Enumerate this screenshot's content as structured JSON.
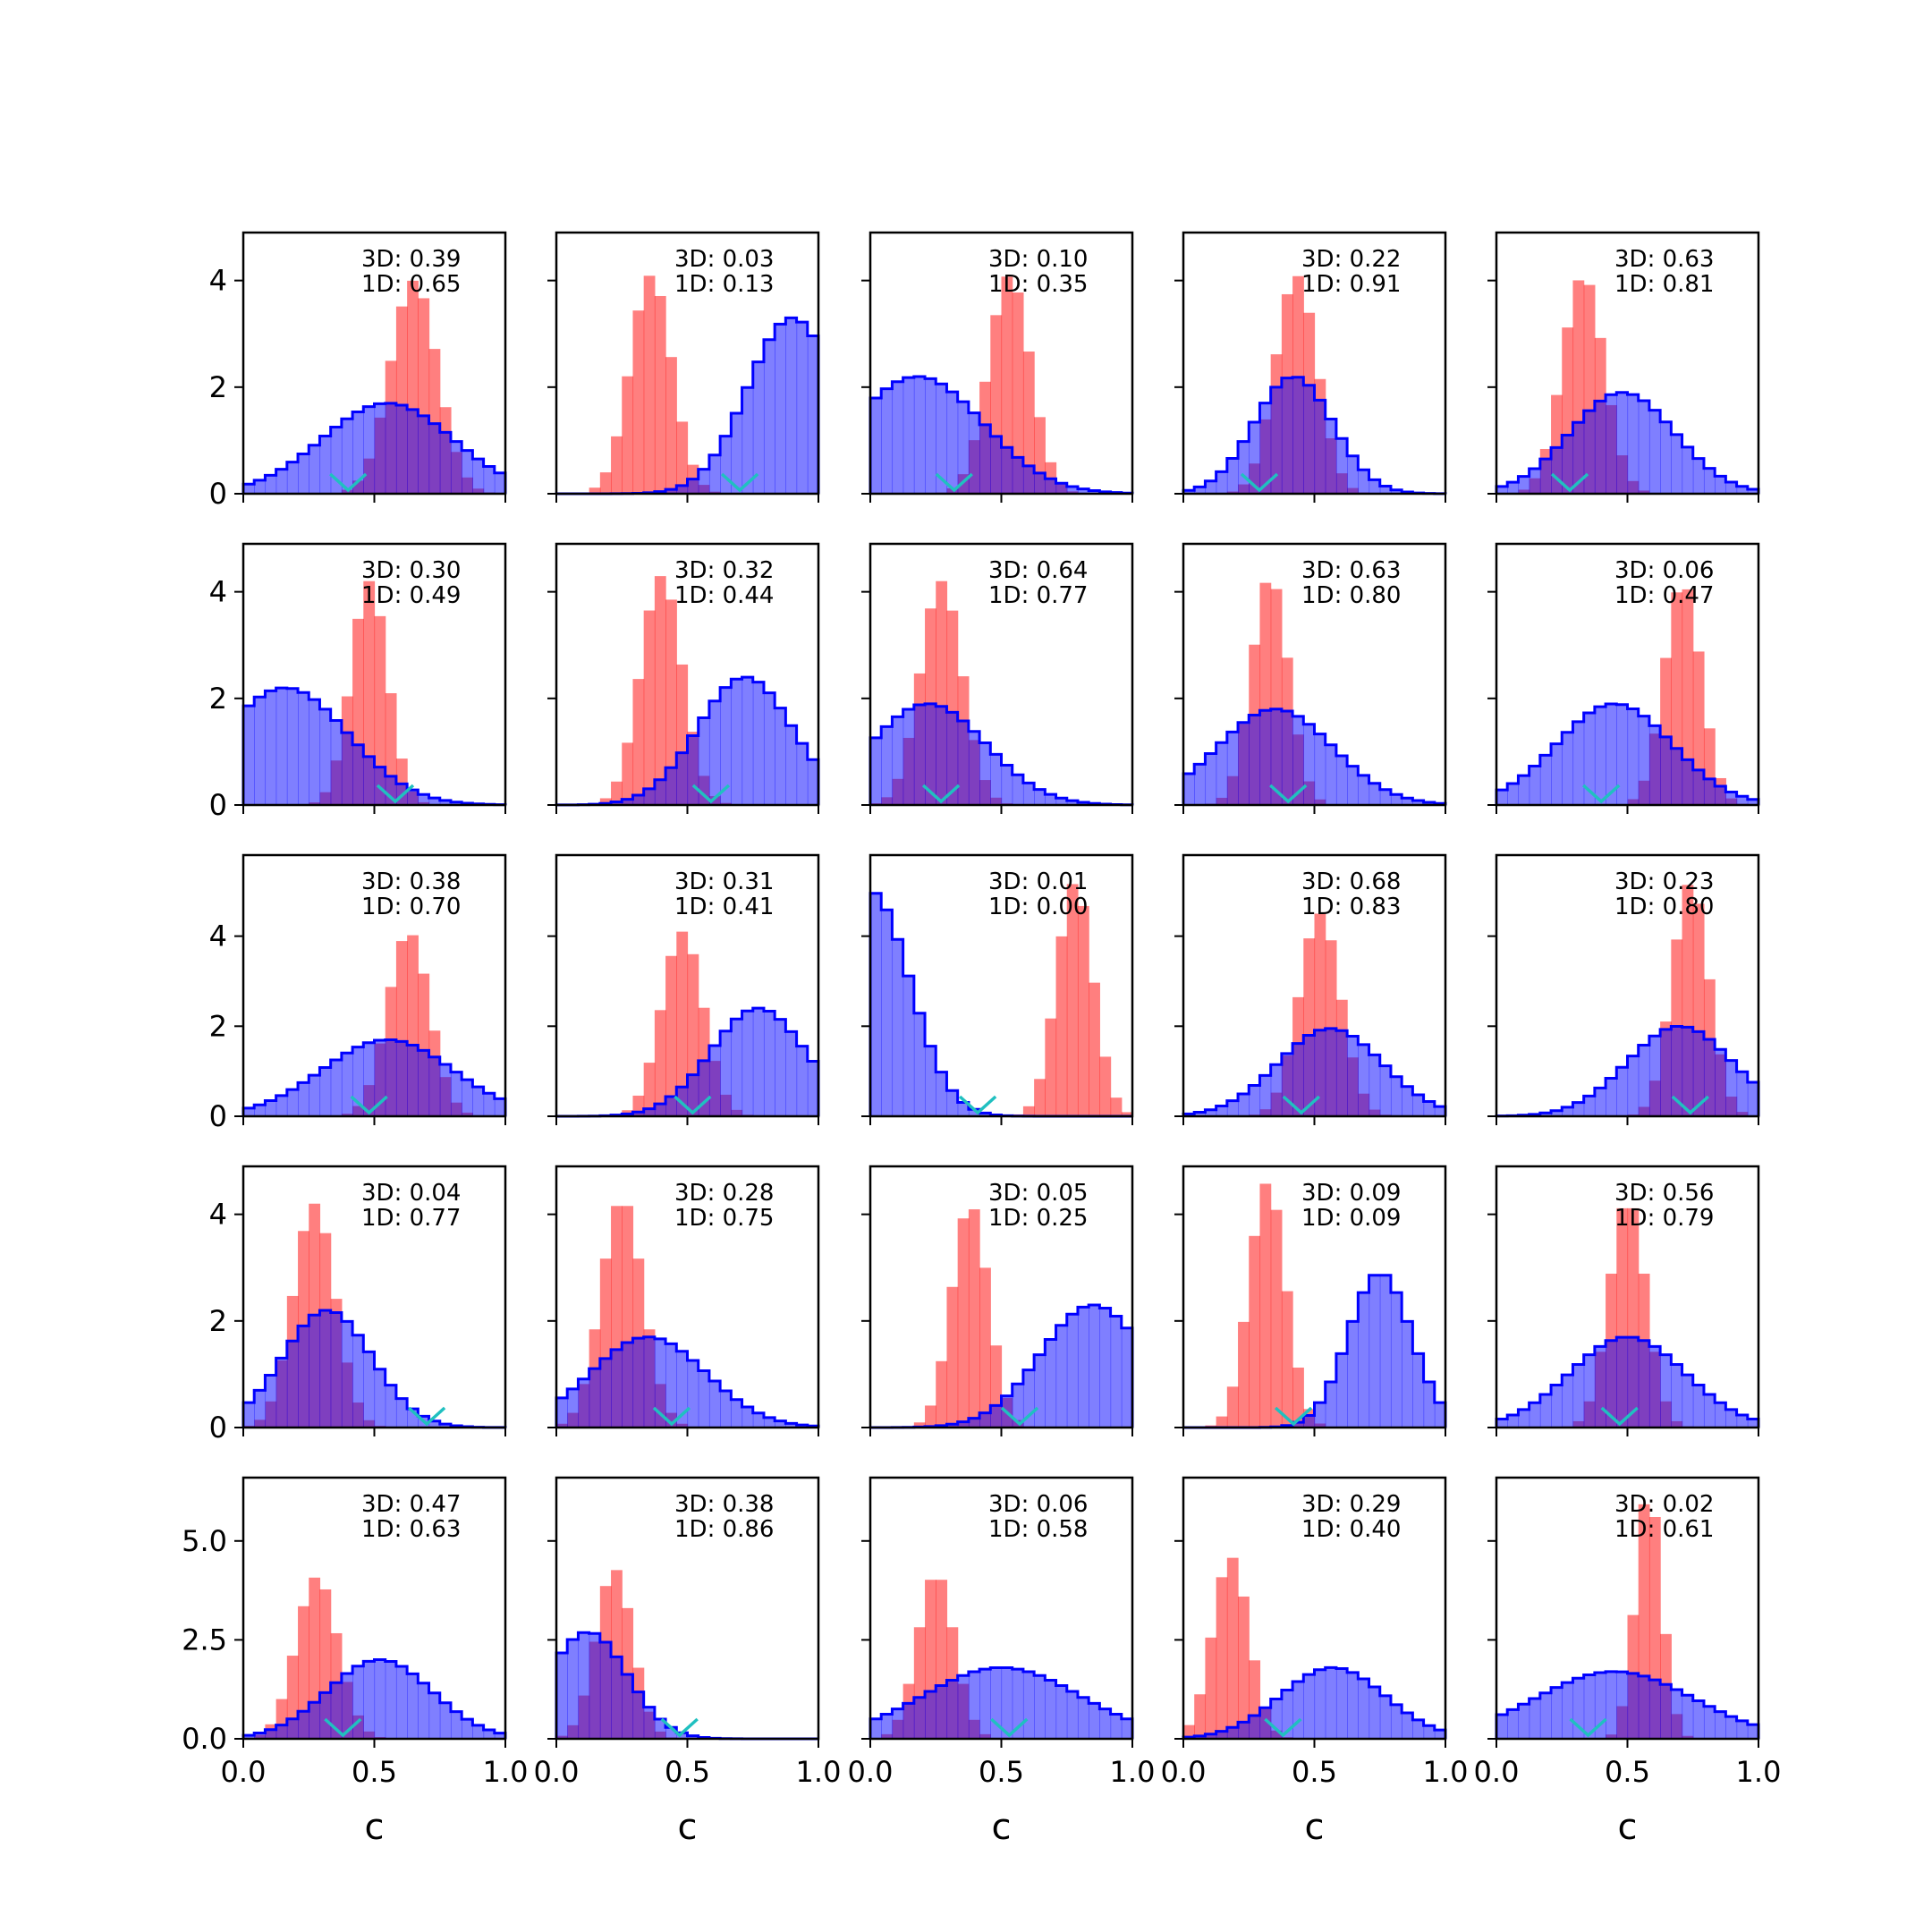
{
  "chart_data": {
    "type": "histogram-grid",
    "rows": 5,
    "cols": 5,
    "xlabel": "c",
    "xlim": [
      0,
      1
    ],
    "xticks": [
      0,
      0.5,
      1
    ],
    "xtick_labels": [
      "0.0",
      "0.5",
      "1.0"
    ],
    "row_ylim": [
      [
        0,
        4.9
      ],
      [
        0,
        4.9
      ],
      [
        0,
        5.8
      ],
      [
        0,
        4.9
      ],
      [
        0,
        6.6
      ]
    ],
    "row_yticks": [
      [
        0,
        2,
        4
      ],
      [
        0,
        2,
        4
      ],
      [
        0,
        2,
        4
      ],
      [
        0,
        2,
        4
      ],
      [
        0,
        2.5,
        5
      ]
    ],
    "row_ytick_labels": [
      [
        "0",
        "2",
        "4"
      ],
      [
        "0",
        "2",
        "4"
      ],
      [
        "0",
        "2",
        "4"
      ],
      [
        "0",
        "2",
        "4"
      ],
      [
        "0.0",
        "2.5",
        "5.0"
      ]
    ],
    "colors": {
      "blue_hist_fill": "#0000ff",
      "blue_hist_edge": "#0000ff",
      "red_hist_fill": "#ff0000",
      "overlap": "#7f0080",
      "marker": "#20c0c0"
    },
    "series_styles": {
      "3D": "blue step-filled histogram",
      "1D": "red filled histogram"
    },
    "panels": [
      {
        "annot_3d": "3D: 0.39",
        "annot_1d": "1D: 0.65",
        "blue": {
          "mu": 0.55,
          "sd": 0.25,
          "peak": 1.7
        },
        "red": {
          "mu": 0.65,
          "sd": 0.09,
          "peak": 4.0
        },
        "marker": 0.4
      },
      {
        "annot_3d": "3D: 0.03",
        "annot_1d": "1D: 0.13",
        "blue": {
          "mu": 0.9,
          "sd": 0.17,
          "peak": 3.3
        },
        "red": {
          "mu": 0.36,
          "sd": 0.08,
          "peak": 4.1
        },
        "marker": 0.7
      },
      {
        "annot_3d": "3D: 0.10",
        "annot_1d": "1D: 0.35",
        "blue": {
          "mu": 0.18,
          "sd": 0.25,
          "peak": 2.2
        },
        "red": {
          "mu": 0.53,
          "sd": 0.08,
          "peak": 4.1
        },
        "marker": 0.32
      },
      {
        "annot_3d": "3D: 0.22",
        "annot_1d": "1D: 0.91",
        "blue": {
          "mu": 0.42,
          "sd": 0.15,
          "peak": 2.2
        },
        "red": {
          "mu": 0.43,
          "sd": 0.08,
          "peak": 4.1
        },
        "marker": 0.29
      },
      {
        "annot_3d": "3D: 0.63",
        "annot_1d": "1D: 0.81",
        "blue": {
          "mu": 0.48,
          "sd": 0.2,
          "peak": 1.9
        },
        "red": {
          "mu": 0.33,
          "sd": 0.08,
          "peak": 4.1
        },
        "marker": 0.28
      },
      {
        "annot_3d": "3D: 0.30",
        "annot_1d": "1D: 0.49",
        "blue": {
          "mu": 0.16,
          "sd": 0.24,
          "peak": 2.2
        },
        "red": {
          "mu": 0.48,
          "sd": 0.07,
          "peak": 4.2
        },
        "marker": 0.58
      },
      {
        "annot_3d": "3D: 0.32",
        "annot_1d": "1D: 0.44",
        "blue": {
          "mu": 0.72,
          "sd": 0.18,
          "peak": 2.4
        },
        "red": {
          "mu": 0.4,
          "sd": 0.08,
          "peak": 4.3
        },
        "marker": 0.59
      },
      {
        "annot_3d": "3D: 0.64",
        "annot_1d": "1D: 0.77",
        "blue": {
          "mu": 0.22,
          "sd": 0.22,
          "peak": 1.9
        },
        "red": {
          "mu": 0.27,
          "sd": 0.08,
          "peak": 4.2
        },
        "marker": 0.27
      },
      {
        "annot_3d": "3D: 0.63",
        "annot_1d": "1D: 0.80",
        "blue": {
          "mu": 0.35,
          "sd": 0.22,
          "peak": 1.8
        },
        "red": {
          "mu": 0.33,
          "sd": 0.07,
          "peak": 4.3
        },
        "marker": 0.4
      },
      {
        "annot_3d": "3D: 0.06",
        "annot_1d": "1D: 0.47",
        "blue": {
          "mu": 0.45,
          "sd": 0.22,
          "peak": 1.9
        },
        "red": {
          "mu": 0.71,
          "sd": 0.07,
          "peak": 4.2
        },
        "marker": 0.4
      },
      {
        "annot_3d": "3D: 0.38",
        "annot_1d": "1D: 0.70",
        "blue": {
          "mu": 0.55,
          "sd": 0.25,
          "peak": 1.7
        },
        "red": {
          "mu": 0.63,
          "sd": 0.08,
          "peak": 4.1
        },
        "marker": 0.48
      },
      {
        "annot_3d": "3D: 0.31",
        "annot_1d": "1D: 0.41",
        "blue": {
          "mu": 0.77,
          "sd": 0.18,
          "peak": 2.4
        },
        "red": {
          "mu": 0.48,
          "sd": 0.08,
          "peak": 4.1
        },
        "marker": 0.52
      },
      {
        "annot_3d": "3D: 0.01",
        "annot_1d": "1D: 0.00",
        "blue": {
          "mu": 0.0,
          "sd": 0.15,
          "peak": 5.0
        },
        "red": {
          "mu": 0.78,
          "sd": 0.07,
          "peak": 5.2
        },
        "marker": 0.41
      },
      {
        "annot_3d": "3D: 0.68",
        "annot_1d": "1D: 0.83",
        "blue": {
          "mu": 0.56,
          "sd": 0.2,
          "peak": 1.95
        },
        "red": {
          "mu": 0.52,
          "sd": 0.08,
          "peak": 4.5
        },
        "marker": 0.45
      },
      {
        "annot_3d": "3D: 0.23",
        "annot_1d": "1D: 0.80",
        "blue": {
          "mu": 0.7,
          "sd": 0.2,
          "peak": 2.0
        },
        "red": {
          "mu": 0.74,
          "sd": 0.07,
          "peak": 5.2
        },
        "marker": 0.74
      },
      {
        "annot_3d": "3D: 0.04",
        "annot_1d": "1D: 0.77",
        "blue": {
          "mu": 0.32,
          "sd": 0.17,
          "peak": 2.2
        },
        "red": {
          "mu": 0.27,
          "sd": 0.08,
          "peak": 4.2
        },
        "marker": 0.7
      },
      {
        "annot_3d": "3D: 0.28",
        "annot_1d": "1D: 0.75",
        "blue": {
          "mu": 0.35,
          "sd": 0.22,
          "peak": 1.7
        },
        "red": {
          "mu": 0.25,
          "sd": 0.08,
          "peak": 4.3
        },
        "marker": 0.44
      },
      {
        "annot_3d": "3D: 0.05",
        "annot_1d": "1D: 0.25",
        "blue": {
          "mu": 0.85,
          "sd": 0.2,
          "peak": 2.3
        },
        "red": {
          "mu": 0.38,
          "sd": 0.07,
          "peak": 4.2
        },
        "marker": 0.57
      },
      {
        "annot_3d": "3D: 0.09",
        "annot_1d": "1D: 0.09",
        "blue": {
          "mu": 0.75,
          "sd": 0.12,
          "peak": 2.9
        },
        "red": {
          "mu": 0.32,
          "sd": 0.07,
          "peak": 4.6
        },
        "marker": 0.42
      },
      {
        "annot_3d": "3D: 0.56",
        "annot_1d": "1D: 0.79",
        "blue": {
          "mu": 0.5,
          "sd": 0.22,
          "peak": 1.7
        },
        "red": {
          "mu": 0.5,
          "sd": 0.07,
          "peak": 4.3
        },
        "marker": 0.47
      },
      {
        "annot_3d": "3D: 0.47",
        "annot_1d": "1D: 0.63",
        "blue": {
          "mu": 0.52,
          "sd": 0.2,
          "peak": 2.0
        },
        "red": {
          "mu": 0.28,
          "sd": 0.08,
          "peak": 4.1
        },
        "marker": 0.38
      },
      {
        "annot_3d": "3D: 0.38",
        "annot_1d": "1D: 0.86",
        "blue": {
          "mu": 0.12,
          "sd": 0.15,
          "peak": 2.7
        },
        "red": {
          "mu": 0.22,
          "sd": 0.07,
          "peak": 4.3
        },
        "marker": 0.47
      },
      {
        "annot_3d": "3D: 0.06",
        "annot_1d": "1D: 0.58",
        "blue": {
          "mu": 0.5,
          "sd": 0.3,
          "peak": 1.8
        },
        "red": {
          "mu": 0.25,
          "sd": 0.07,
          "peak": 4.2
        },
        "marker": 0.53
      },
      {
        "annot_3d": "3D: 0.29",
        "annot_1d": "1D: 0.40",
        "blue": {
          "mu": 0.57,
          "sd": 0.2,
          "peak": 1.8
        },
        "red": {
          "mu": 0.18,
          "sd": 0.07,
          "peak": 4.6
        },
        "marker": 0.38
      },
      {
        "annot_3d": "3D: 0.02",
        "annot_1d": "1D: 0.61",
        "blue": {
          "mu": 0.45,
          "sd": 0.3,
          "peak": 1.7
        },
        "red": {
          "mu": 0.58,
          "sd": 0.05,
          "peak": 6.3
        },
        "marker": 0.35
      }
    ]
  }
}
